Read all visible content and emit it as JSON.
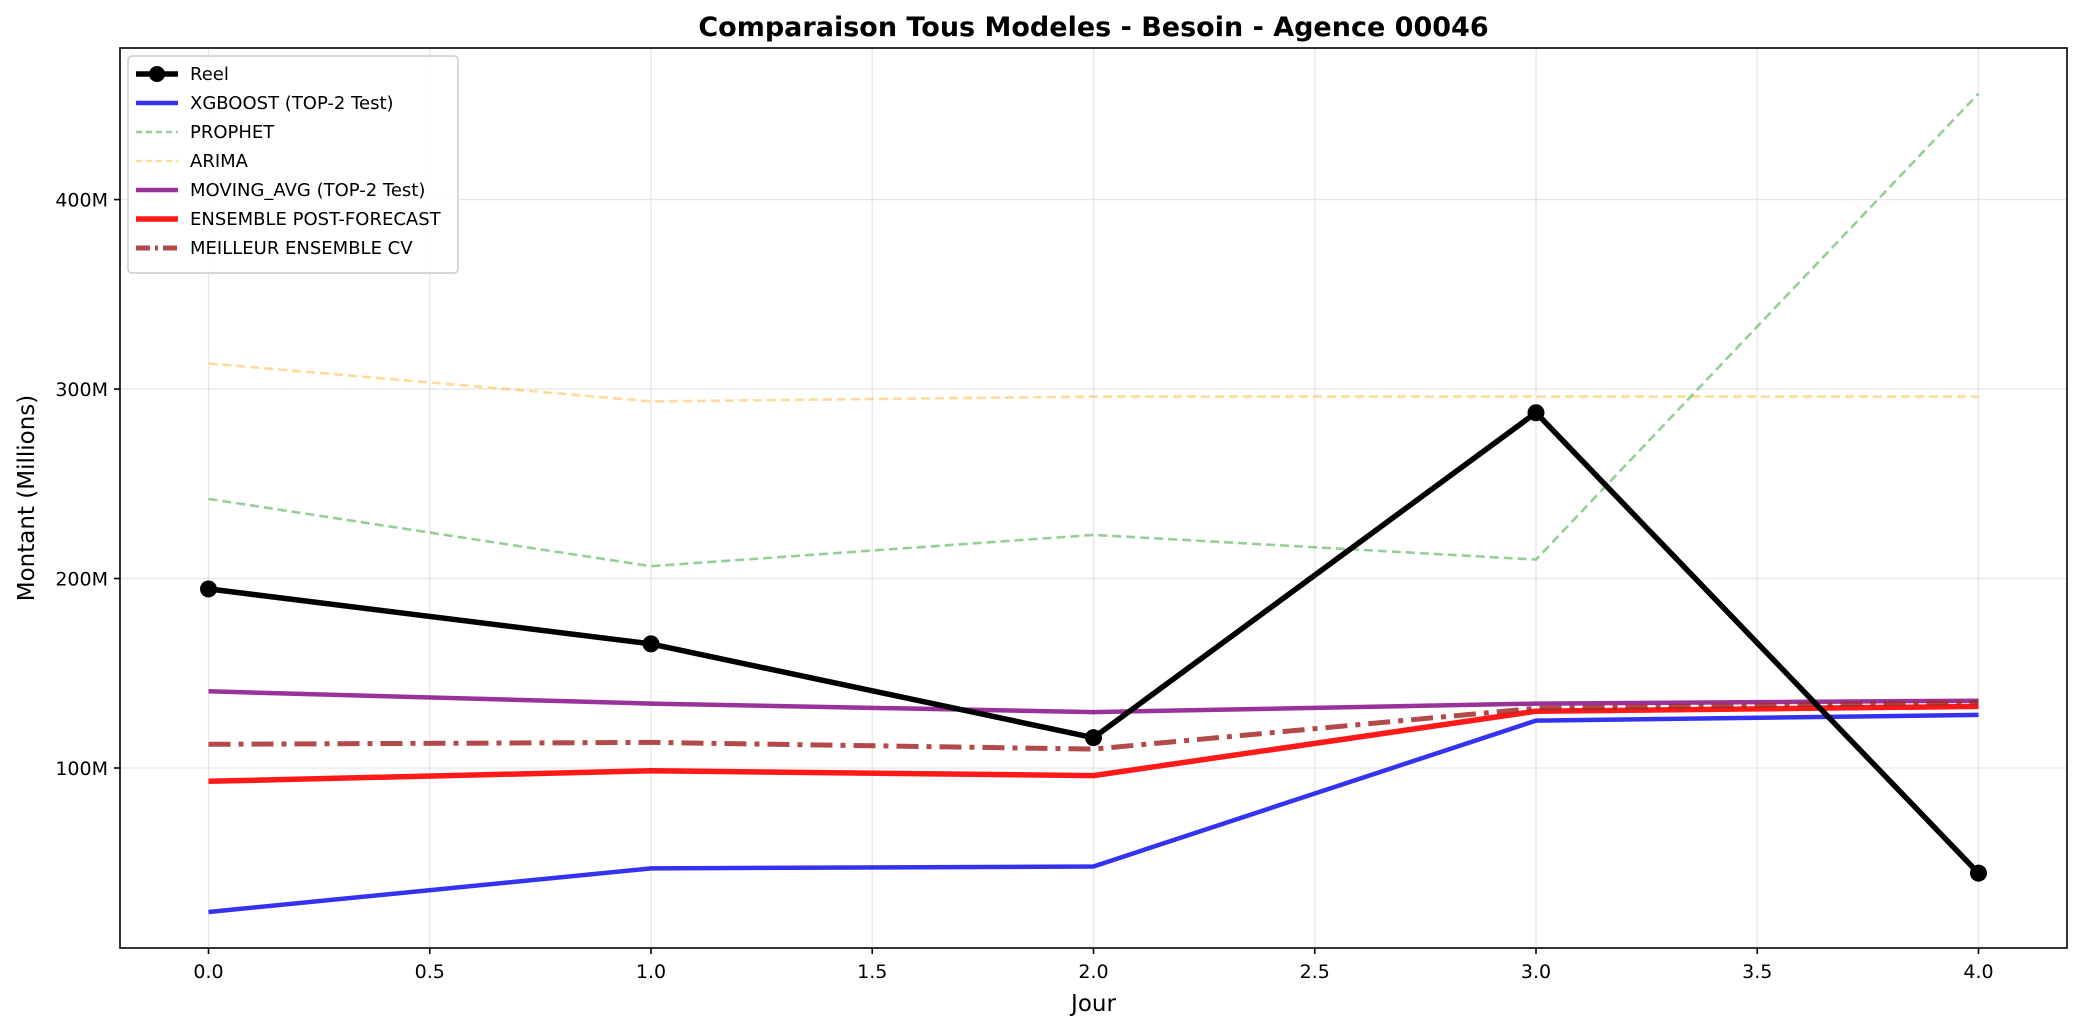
{
  "chart_data": {
    "type": "line",
    "title": "Comparaison Tous Modeles - Besoin - Agence 00046",
    "xlabel": "Jour",
    "ylabel": "Montant (Millions)",
    "x": [
      0,
      1,
      2,
      3,
      4
    ],
    "xlim": [
      -0.2,
      4.2
    ],
    "ylim": [
      5,
      480
    ],
    "xticks": [
      0,
      0.5,
      1,
      1.5,
      2,
      2.5,
      3,
      3.5,
      4
    ],
    "xtick_labels": [
      "0.0",
      "0.5",
      "1.0",
      "1.5",
      "2.0",
      "2.5",
      "3.0",
      "3.5",
      "4.0"
    ],
    "yticks": [
      100,
      200,
      300,
      400
    ],
    "ytick_labels": [
      "100M",
      "200M",
      "300M",
      "400M"
    ],
    "grid": true,
    "legend_position": "top-left",
    "series": [
      {
        "name": "Reel",
        "values": [
          194.5,
          165.5,
          116,
          287.5,
          44.5
        ],
        "color": "#000000",
        "style": "solid",
        "marker": "circle"
      },
      {
        "name": "XGBOOST (TOP-2 Test)",
        "values": [
          24,
          47,
          48,
          125,
          128
        ],
        "color": "#0000ee",
        "style": "solid"
      },
      {
        "name": "PROPHET",
        "values": [
          242,
          206.5,
          223,
          210,
          456
        ],
        "color": "#2ca02c",
        "style": "dashed"
      },
      {
        "name": "ARIMA",
        "values": [
          313.5,
          293.5,
          296,
          296,
          296
        ],
        "color": "#ffa500",
        "style": "dashed"
      },
      {
        "name": "MOVING_AVG (TOP-2 Test)",
        "values": [
          140.5,
          134,
          129.5,
          134,
          135.5
        ],
        "color": "#800080",
        "style": "solid"
      },
      {
        "name": "ENSEMBLE POST-FORECAST",
        "values": [
          93,
          98.5,
          96,
          130,
          132.5
        ],
        "color": "#ff0000",
        "style": "solid"
      },
      {
        "name": "MEILLEUR ENSEMBLE CV",
        "values": [
          112.5,
          113.5,
          110,
          131.5,
          134.5
        ],
        "color": "#a52a2a",
        "style": "dashdot"
      }
    ]
  }
}
